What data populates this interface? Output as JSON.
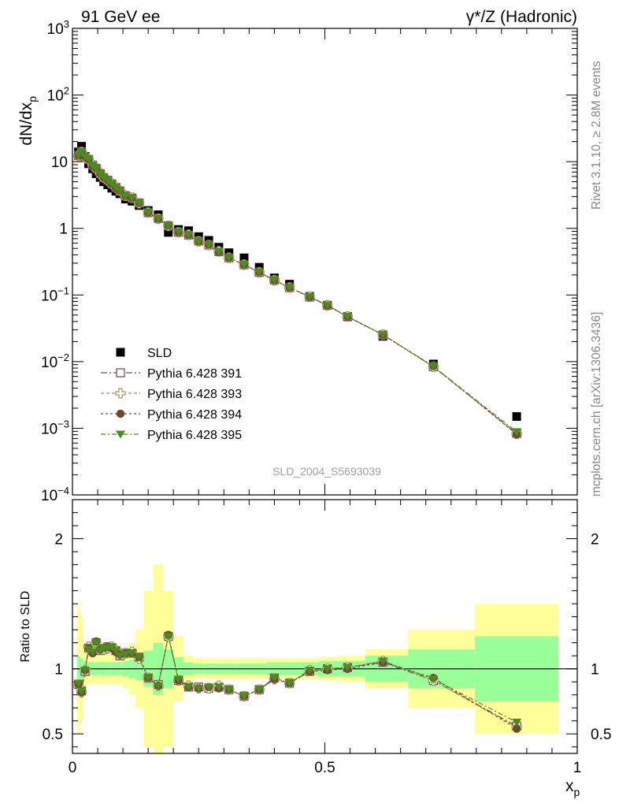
{
  "header": {
    "left": "91 GeV ee",
    "right": "γ*/Z (Hadronic)"
  },
  "side_text": {
    "rivet": "Rivet 3.1.10, ≥ 2.8M events",
    "mcplots": "mcplots.cern.ch [arXiv:1306.3436]"
  },
  "watermark": "SLD_2004_S5693039",
  "axes": {
    "main_ylabel": "dN/dx",
    "main_ylabel_sub": "p",
    "ratio_ylabel": "Ratio to SLD",
    "xlabel": "x",
    "xlabel_sub": "p"
  },
  "legend": [
    {
      "label": "SLD",
      "color": "#000000",
      "marker": "square-filled"
    },
    {
      "label": "Pythia 6.428 391",
      "color": "#7b4a5e",
      "marker": "square-open"
    },
    {
      "label": "Pythia 6.428 393",
      "color": "#9c9a5a",
      "marker": "cross-open"
    },
    {
      "label": "Pythia 6.428 394",
      "color": "#6b4a2e",
      "marker": "circle-filled"
    },
    {
      "label": "Pythia 6.428 395",
      "color": "#4f8a1e",
      "marker": "triangle-down-filled"
    }
  ],
  "chart_data": {
    "type": "scatter",
    "main": {
      "xlim": [
        0,
        1
      ],
      "ylim": [
        0.0001,
        1000
      ],
      "yscale": "log",
      "x_ticks": [
        "0",
        "0.5",
        "1"
      ],
      "y_ticks": [
        {
          "value": 0.0001,
          "base": "10",
          "exp": "−4"
        },
        {
          "value": 0.001,
          "base": "10",
          "exp": "−3"
        },
        {
          "value": 0.01,
          "base": "10",
          "exp": "−2"
        },
        {
          "value": 0.1,
          "base": "10",
          "exp": "−1"
        },
        {
          "value": 1,
          "base": "1",
          "exp": ""
        },
        {
          "value": 10,
          "base": "10",
          "exp": ""
        },
        {
          "value": 100,
          "base": "10",
          "exp": "2"
        },
        {
          "value": 1000,
          "base": "10",
          "exp": "3"
        }
      ]
    },
    "ratio": {
      "xlim": [
        0,
        1
      ],
      "ylim": [
        0.35,
        2.3
      ],
      "y_ticks": [
        {
          "value": 0.5,
          "label": "0.5"
        },
        {
          "value": 1,
          "label": "1"
        },
        {
          "value": 2,
          "label": "2"
        }
      ]
    },
    "x": [
      0.012,
      0.018,
      0.025,
      0.032,
      0.04,
      0.047,
      0.055,
      0.062,
      0.07,
      0.078,
      0.086,
      0.094,
      0.105,
      0.118,
      0.132,
      0.15,
      0.17,
      0.19,
      0.21,
      0.23,
      0.25,
      0.27,
      0.29,
      0.31,
      0.34,
      0.37,
      0.4,
      0.43,
      0.47,
      0.505,
      0.545,
      0.615,
      0.715,
      0.88
    ],
    "sld_values": [
      14.0,
      17.0,
      12.0,
      9.3,
      7.8,
      6.6,
      5.8,
      5.0,
      4.5,
      4.0,
      3.6,
      3.3,
      2.75,
      2.55,
      2.2,
      1.85,
      1.6,
      0.87,
      0.96,
      0.92,
      0.75,
      0.66,
      0.52,
      0.43,
      0.36,
      0.26,
      0.18,
      0.145,
      0.095,
      0.07,
      0.047,
      0.024,
      0.0092,
      0.0015
    ],
    "sld_band_inner": [
      0.1,
      0.08,
      0.06,
      0.05,
      0.05,
      0.05,
      0.05,
      0.05,
      0.05,
      0.05,
      0.05,
      0.05,
      0.06,
      0.07,
      0.09,
      0.14,
      0.2,
      0.15,
      0.09,
      0.05,
      0.04,
      0.04,
      0.04,
      0.04,
      0.04,
      0.04,
      0.05,
      0.05,
      0.05,
      0.06,
      0.06,
      0.1,
      0.15,
      0.25
    ],
    "sld_band_outer": [
      0.5,
      0.4,
      0.15,
      0.12,
      0.12,
      0.12,
      0.12,
      0.12,
      0.12,
      0.12,
      0.12,
      0.12,
      0.15,
      0.2,
      0.3,
      0.6,
      0.8,
      0.6,
      0.25,
      0.1,
      0.08,
      0.08,
      0.08,
      0.08,
      0.08,
      0.08,
      0.08,
      0.08,
      0.08,
      0.09,
      0.1,
      0.15,
      0.3,
      0.5
    ],
    "series": [
      {
        "name": "Pythia 6.428 391",
        "ratio": [
          0.88,
          0.83,
          0.98,
          1.16,
          1.14,
          1.2,
          1.14,
          1.15,
          1.17,
          1.16,
          1.14,
          1.1,
          1.12,
          1.12,
          1.09,
          0.93,
          0.88,
          1.25,
          0.91,
          0.86,
          0.86,
          0.85,
          0.86,
          0.84,
          0.79,
          0.84,
          0.93,
          0.89,
          0.98,
          1.0,
          1.01,
          1.05,
          0.91,
          0.56
        ]
      },
      {
        "name": "Pythia 6.428 393",
        "ratio": [
          0.87,
          0.82,
          0.99,
          1.17,
          1.13,
          1.2,
          1.15,
          1.15,
          1.16,
          1.17,
          1.14,
          1.11,
          1.12,
          1.13,
          1.08,
          0.93,
          0.87,
          1.25,
          0.91,
          0.87,
          0.85,
          0.85,
          0.87,
          0.84,
          0.79,
          0.84,
          0.92,
          0.89,
          0.99,
          1.0,
          1.01,
          1.06,
          0.91,
          0.55
        ]
      },
      {
        "name": "Pythia 6.428 394",
        "ratio": [
          0.88,
          0.82,
          0.99,
          1.16,
          1.12,
          1.21,
          1.15,
          1.16,
          1.17,
          1.16,
          1.13,
          1.11,
          1.12,
          1.12,
          1.09,
          0.93,
          0.87,
          1.26,
          0.91,
          0.86,
          0.85,
          0.86,
          0.85,
          0.84,
          0.79,
          0.84,
          0.92,
          0.89,
          0.98,
          0.99,
          1.0,
          1.05,
          0.93,
          0.54
        ]
      },
      {
        "name": "Pythia 6.428 395",
        "ratio": [
          0.89,
          0.83,
          0.99,
          1.15,
          1.13,
          1.2,
          1.14,
          1.16,
          1.16,
          1.17,
          1.14,
          1.1,
          1.11,
          1.12,
          1.09,
          0.93,
          0.87,
          1.25,
          0.92,
          0.86,
          0.85,
          0.86,
          0.86,
          0.84,
          0.79,
          0.84,
          0.93,
          0.89,
          0.99,
          1.0,
          1.01,
          1.06,
          0.92,
          0.59
        ]
      }
    ]
  }
}
